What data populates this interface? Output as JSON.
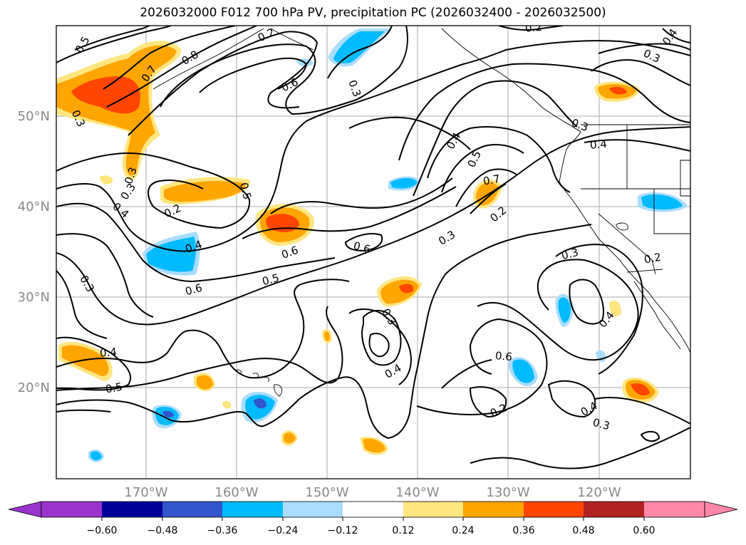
{
  "title": "2026032000 F012 700 hPa PV, precipitation PC (2026032400 - 2026032500)",
  "axes": {
    "lon_labels": [
      "170°W",
      "160°W",
      "150°W",
      "140°W",
      "130°W",
      "120°W"
    ],
    "lat_labels": [
      "50°N",
      "40°N",
      "30°N",
      "20°N"
    ]
  },
  "contour_labels": [
    "0.5",
    "0.8",
    "0.7",
    "0.6",
    "0.3",
    "0.2",
    "0.3",
    "0.4",
    "0.3",
    "0.3",
    "0.4",
    "0.3",
    "0.2",
    "0.5",
    "0.6",
    "0.5",
    "0.6",
    "0.3",
    "0.6",
    "0.7",
    "0.4",
    "0.5",
    "0.4",
    "0.2",
    "0.3",
    "0.4",
    "0.4",
    "0.2",
    "0.3",
    "0.2",
    "0.6",
    "0.5",
    "0.3",
    "0.4",
    "0.4",
    "0.4",
    "0.3",
    "0.2",
    "0.3"
  ],
  "colorbar": {
    "ticks": [
      "−0.60",
      "−0.48",
      "−0.36",
      "−0.24",
      "−0.12",
      "0.12",
      "0.24",
      "0.36",
      "0.48",
      "0.60"
    ],
    "colors": [
      "#9933cc",
      "#000099",
      "#3355cc",
      "#00bbff",
      "#aaddff",
      "#ffffff",
      "#ffe680",
      "#ffa500",
      "#ff4500",
      "#b22222",
      "#ff88aa"
    ]
  },
  "colors": {
    "contour": "#000000",
    "grid": "#aaaaaa",
    "tick_label": "#888888",
    "neg_strong": "#3355cc",
    "neg": "#00bbff",
    "neg_light": "#aaddff",
    "pos_light": "#ffe680",
    "pos": "#ffa500",
    "pos_strong": "#ff4500"
  }
}
